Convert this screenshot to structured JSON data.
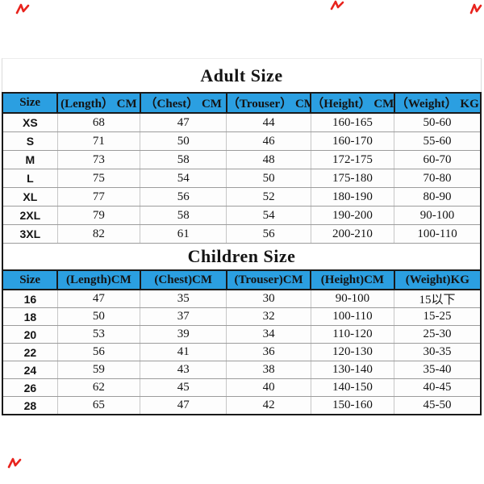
{
  "colors": {
    "header_bg": "#2b9fe1",
    "border_dark": "#1a1a1a",
    "text": "#141414",
    "ink_mark": "#e8231d"
  },
  "adult": {
    "title": "Adult Size",
    "headers": [
      "Size",
      "(Length） CM",
      "（Chest） CM",
      "（Trouser） CM",
      "（Height） CM",
      "（Weight） KG"
    ],
    "rows": [
      [
        "XS",
        "68",
        "47",
        "44",
        "160-165",
        "50-60"
      ],
      [
        "S",
        "71",
        "50",
        "46",
        "160-170",
        "55-60"
      ],
      [
        "M",
        "73",
        "58",
        "48",
        "172-175",
        "60-70"
      ],
      [
        "L",
        "75",
        "54",
        "50",
        "175-180",
        "70-80"
      ],
      [
        "XL",
        "77",
        "56",
        "52",
        "180-190",
        "80-90"
      ],
      [
        "2XL",
        "79",
        "58",
        "54",
        "190-200",
        "90-100"
      ],
      [
        "3XL",
        "82",
        "61",
        "56",
        "200-210",
        "100-110"
      ]
    ]
  },
  "children": {
    "title": "Children Size",
    "headers": [
      "Size",
      "(Length)CM",
      "(Chest)CM",
      "(Trouser)CM",
      "(Height)CM",
      "(Weight)KG"
    ],
    "rows": [
      [
        "16",
        "47",
        "35",
        "30",
        "90-100",
        "15以下"
      ],
      [
        "18",
        "50",
        "37",
        "32",
        "100-110",
        "15-25"
      ],
      [
        "20",
        "53",
        "39",
        "34",
        "110-120",
        "25-30"
      ],
      [
        "22",
        "56",
        "41",
        "36",
        "120-130",
        "30-35"
      ],
      [
        "24",
        "59",
        "43",
        "38",
        "130-140",
        "35-40"
      ],
      [
        "26",
        "62",
        "45",
        "40",
        "140-150",
        "40-45"
      ],
      [
        "28",
        "65",
        "47",
        "42",
        "150-160",
        "45-50"
      ]
    ]
  }
}
